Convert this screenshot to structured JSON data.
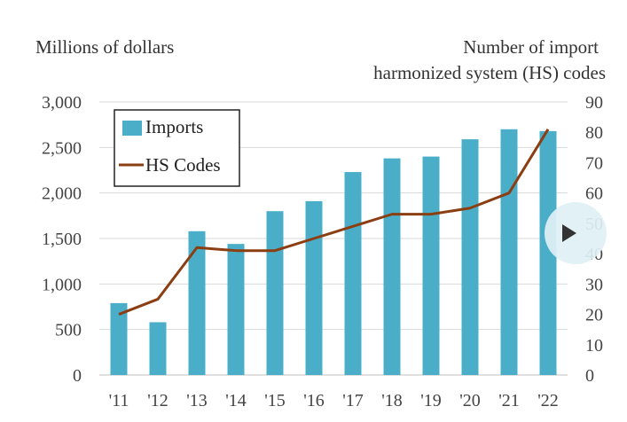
{
  "chart_data": {
    "type": "bar+line",
    "categories": [
      "'11",
      "'12",
      "'13",
      "'14",
      "'15",
      "'16",
      "'17",
      "'18",
      "'19",
      "'20",
      "'21",
      "'22"
    ],
    "series": [
      {
        "name": "Imports",
        "type": "bar",
        "axis": "left",
        "values": [
          790,
          580,
          1580,
          1440,
          1800,
          1910,
          2230,
          2380,
          2400,
          2590,
          2700,
          2680
        ]
      },
      {
        "name": "HS Codes",
        "type": "line",
        "axis": "right",
        "values": [
          20,
          25,
          42,
          41,
          41,
          45,
          49,
          53,
          53,
          55,
          60,
          81
        ]
      }
    ],
    "ylabel_left": "Millions of dollars",
    "ylabel_right_line1": "Number of import",
    "ylabel_right_line2": "harmonized system (HS) codes",
    "ylim_left": [
      0,
      3000
    ],
    "ylim_right": [
      0,
      90
    ],
    "yticks_left": [
      "0",
      "500",
      "1,000",
      "1,500",
      "2,000",
      "2,500",
      "3,000"
    ],
    "yticks_right": [
      "0",
      "10",
      "20",
      "30",
      "40",
      "50",
      "60",
      "70",
      "80",
      "90"
    ],
    "grid": true,
    "legend_position": "top-left",
    "colors": {
      "bar": "#4aaec9",
      "line": "#8b3e12",
      "grid": "#d9d9d9"
    }
  },
  "overlay": {
    "icon": "play-icon"
  }
}
